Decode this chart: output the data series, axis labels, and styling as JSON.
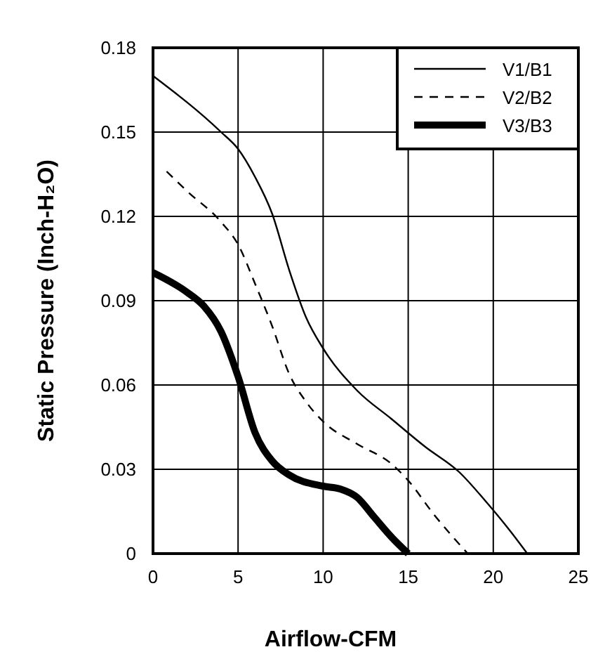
{
  "chart_data": {
    "type": "line",
    "xlabel": "Airflow-CFM",
    "ylabel": "Static Pressure (Inch-H₂O)",
    "xlim": [
      0,
      25
    ],
    "ylim": [
      0,
      0.18
    ],
    "xticks": [
      0,
      5,
      10,
      15,
      20,
      25
    ],
    "yticks": [
      0,
      0.03,
      0.06,
      0.09,
      0.12,
      0.15,
      0.18
    ],
    "grid": true,
    "legend": "top right",
    "marker": "none",
    "series": [
      {
        "name": "V1/B1",
        "color": "#000000",
        "line_style": "solid",
        "x": [
          0,
          4,
          5,
          6,
          7,
          8,
          9,
          10,
          12,
          14,
          16,
          18,
          19.5,
          21,
          22
        ],
        "values": [
          0.17,
          0.15,
          0.144,
          0.134,
          0.121,
          0.101,
          0.084,
          0.073,
          0.058,
          0.048,
          0.038,
          0.029,
          0.019,
          0.008,
          0
        ]
      },
      {
        "name": "V2/B2",
        "color": "#000000",
        "line_style": "dashed",
        "x": [
          0.8,
          2,
          4,
          5,
          6,
          7,
          8,
          9,
          10,
          12,
          14,
          15,
          16.5,
          18.5
        ],
        "values": [
          0.136,
          0.129,
          0.118,
          0.11,
          0.096,
          0.081,
          0.064,
          0.054,
          0.047,
          0.039,
          0.032,
          0.026,
          0.014,
          0
        ]
      },
      {
        "name": "V3/B3",
        "color": "#000000",
        "line_style": "solid",
        "x": [
          0,
          2,
          3,
          4,
          5,
          6,
          7,
          8,
          10,
          11,
          12,
          13,
          14,
          15
        ],
        "values": [
          0.1,
          0.093,
          0.088,
          0.079,
          0.063,
          0.043,
          0.033,
          0.028,
          0.024,
          0.023,
          0.02,
          0.013,
          0.006,
          0
        ]
      }
    ]
  }
}
